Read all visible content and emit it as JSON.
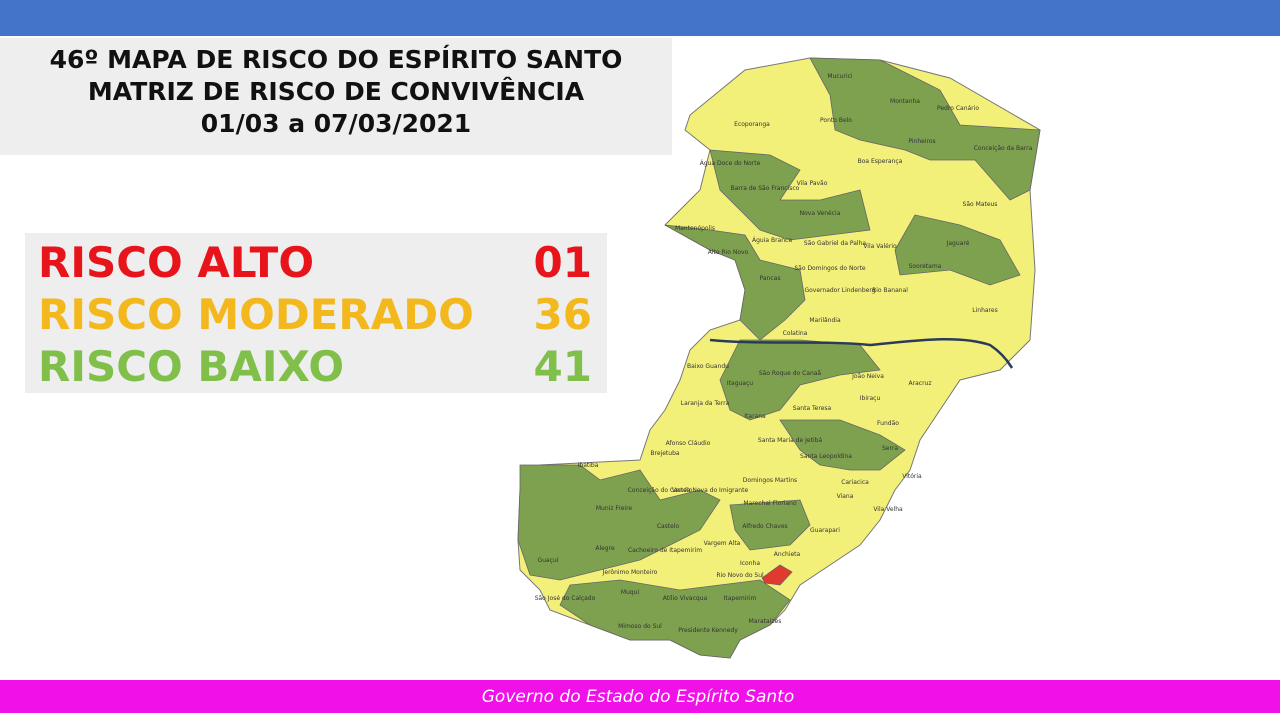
{
  "header": {
    "title_lines": [
      "46º MAPA DE RISCO DO ESPÍRITO SANTO",
      "MATRIZ DE RISCO DE CONVIVÊNCIA",
      "01/03 a 07/03/2021"
    ]
  },
  "legend": {
    "rows": [
      {
        "label": "RISCO ALTO",
        "count": "01",
        "color": "#e8141c"
      },
      {
        "label": "RISCO MODERADO",
        "count": "36",
        "color": "#f2b81e"
      },
      {
        "label": "RISCO BAIXO",
        "count": "41",
        "color": "#7fbf4a"
      }
    ]
  },
  "map": {
    "labels": [
      "Mucurici",
      "Montanha",
      "Pedro Canário",
      "Ecoporanga",
      "Ponto Belo",
      "Pinheiros",
      "Conceição da Barra",
      "Boa Esperança",
      "Água Doce do Norte",
      "Vila Pavão",
      "Barra de São Francisco",
      "São Mateus",
      "Nova Venécia",
      "Mantenópolis",
      "Águia Branca",
      "São Gabriel da Palha",
      "Vila Valério",
      "Jaguaré",
      "Alto Rio Novo",
      "São Domingos do Norte",
      "Sooretama",
      "Pancas",
      "Governador Lindenberg",
      "Rio Bananal",
      "Linhares",
      "Marilândia",
      "Colatina",
      "Baixo Guandu",
      "São Roque do Canaã",
      "Itaguaçu",
      "João Neiva",
      "Ibiraçu",
      "Aracruz",
      "Laranja da Terra",
      "Santa Teresa",
      "Itarana",
      "Fundão",
      "Afonso Cláudio",
      "Santa Maria de Jetibá",
      "Brejetuba",
      "Santa Leopoldina",
      "Serra",
      "Ibatiba",
      "Vitória",
      "Domingos Martins",
      "Conceição do Castelo",
      "Venda Nova do Imigrante",
      "Cariacica",
      "Viana",
      "Muniz Freire",
      "Marechal Floriano",
      "Vila Velha",
      "Castelo",
      "Alfredo Chaves",
      "Guarapari",
      "Alegre",
      "Cachoeiro de Itapemirim",
      "Vargem Alta",
      "Anchieta",
      "Jerônimo Monteiro",
      "Iconha",
      "Rio Novo do Sul",
      "Guaçuí",
      "Muqui",
      "São José do Calçado",
      "Atílio Vivacqua",
      "Itapemirim",
      "Marataízes",
      "Mimoso do Sul",
      "Presidente Kennedy"
    ]
  },
  "footer": {
    "text": "Governo do Estado do Espírito Santo"
  }
}
